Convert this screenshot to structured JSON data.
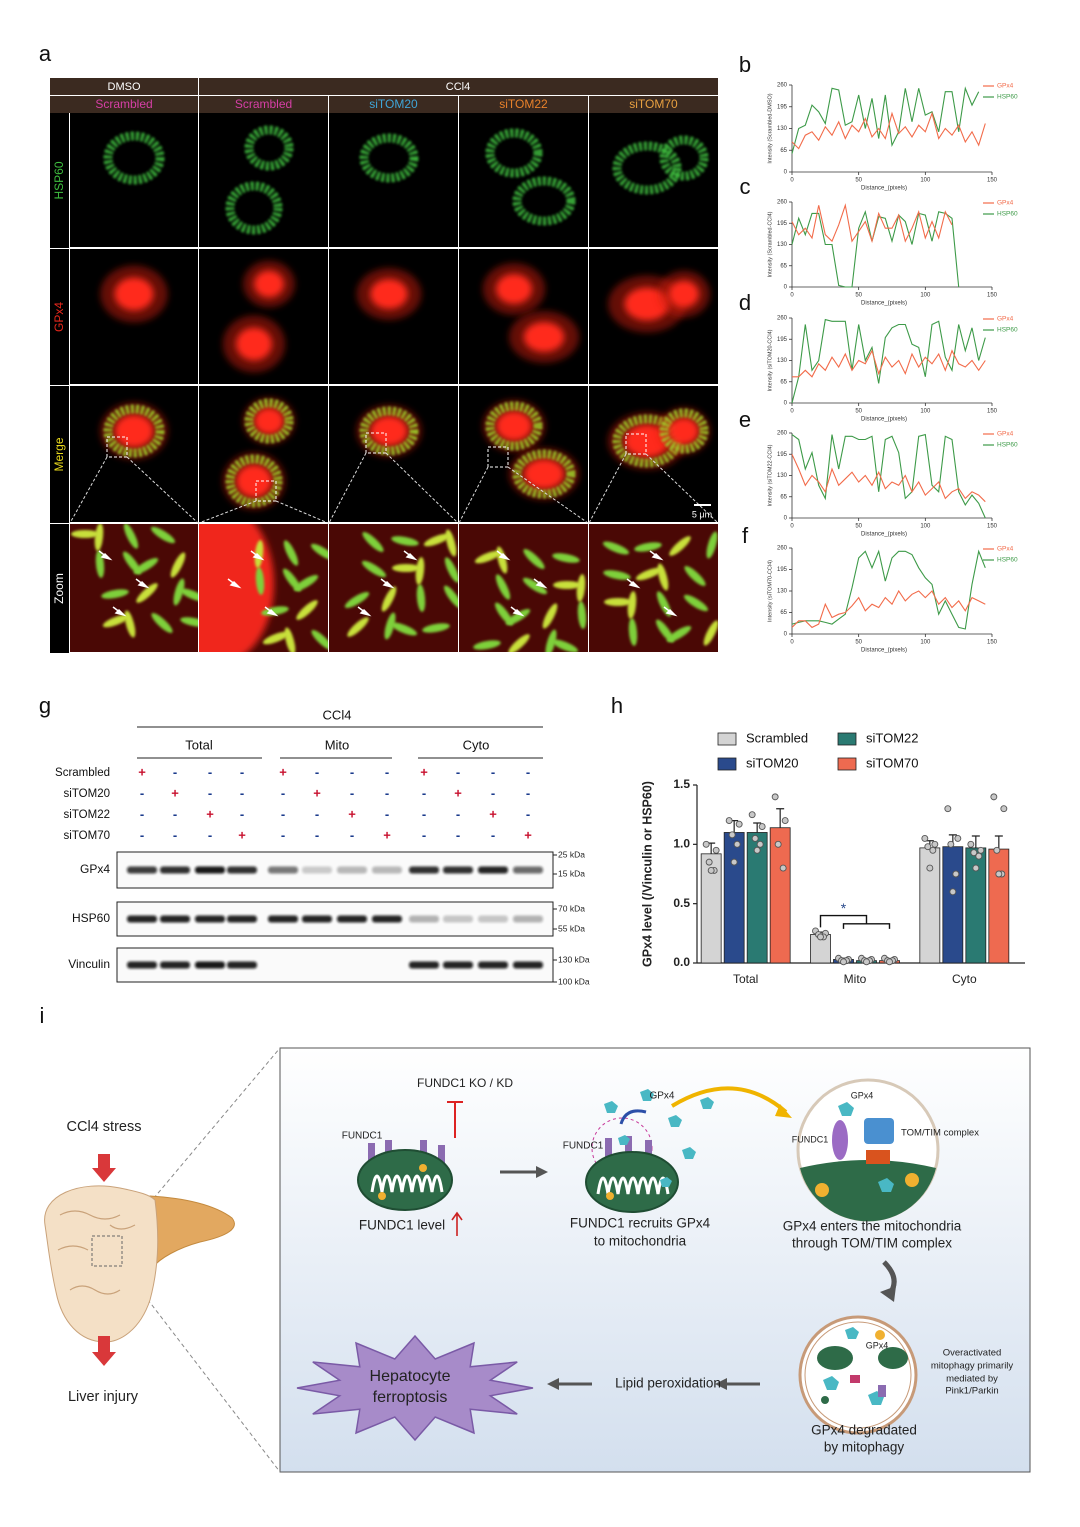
{
  "panel_labels": [
    "a",
    "b",
    "c",
    "d",
    "e",
    "f",
    "g",
    "h",
    "i"
  ],
  "microscopy": {
    "groups": [
      "DMSO",
      "CCl4"
    ],
    "conditions": [
      {
        "label": "Scrambled",
        "color": "#d63fa6"
      },
      {
        "label": "Scrambled",
        "color": "#d63fa6"
      },
      {
        "label": "siTOM20",
        "color": "#3fa5d8"
      },
      {
        "label": "siTOM22",
        "color": "#e8812a"
      },
      {
        "label": "siTOM70",
        "color": "#e8a040"
      }
    ],
    "rows": [
      {
        "label": "HSP60",
        "color": "#3fbf3f"
      },
      {
        "label": "GPx4",
        "color": "#e8281c"
      },
      {
        "label": "Merge",
        "color": "#e8d81c"
      },
      {
        "label": "Zoom",
        "color": "#ffffff"
      }
    ],
    "scale_bar": "5 μm"
  },
  "chart_data": [
    {
      "type": "line",
      "ylabel": "Intensity (Scrambled-DMSO)",
      "xlabel": "Distance_(pixels)",
      "x": [
        0,
        5,
        10,
        15,
        20,
        25,
        30,
        35,
        40,
        45,
        50,
        55,
        60,
        65,
        70,
        75,
        80,
        85,
        90,
        95,
        100,
        105,
        110,
        115,
        120,
        125,
        130,
        135,
        140,
        145
      ],
      "xlim": [
        0,
        150
      ],
      "xticks": [
        0,
        50,
        100,
        150
      ],
      "ylim": [
        0,
        260
      ],
      "yticks": [
        0,
        65,
        130,
        195,
        260
      ],
      "series": [
        {
          "name": "GPx4",
          "color": "#f26b4a",
          "values": [
            90,
            70,
            110,
            120,
            95,
            135,
            110,
            150,
            100,
            140,
            120,
            160,
            105,
            130,
            100,
            175,
            115,
            135,
            105,
            140,
            120,
            175,
            100,
            130,
            110,
            140,
            90,
            120,
            80,
            145
          ]
        },
        {
          "name": "HSP60",
          "color": "#3d9a48",
          "values": [
            55,
            130,
            140,
            200,
            180,
            145,
            250,
            245,
            140,
            150,
            230,
            130,
            220,
            100,
            230,
            80,
            120,
            250,
            150,
            250,
            170,
            180,
            120,
            240,
            240,
            120,
            250,
            200,
            240,
            null
          ]
        }
      ]
    },
    {
      "type": "line",
      "ylabel": "Intensity (Scrambled-CCl4)",
      "xlabel": "Distance_(pixels)",
      "x": [
        0,
        5,
        10,
        15,
        20,
        25,
        30,
        35,
        40,
        45,
        50,
        55,
        60,
        65,
        70,
        75,
        80,
        85,
        90,
        95,
        100,
        105,
        110,
        115,
        120,
        125,
        130,
        135,
        140,
        145
      ],
      "xlim": [
        0,
        150
      ],
      "xticks": [
        0,
        50,
        100,
        150
      ],
      "ylim": [
        0,
        260
      ],
      "yticks": [
        0,
        65,
        130,
        195,
        260
      ],
      "series": [
        {
          "name": "GPx4",
          "color": "#f26b4a",
          "values": [
            200,
            160,
            180,
            150,
            250,
            160,
            140,
            190,
            250,
            140,
            170,
            200,
            140,
            225,
            180,
            180,
            220,
            140,
            180,
            230,
            150,
            200,
            150,
            230,
            190,
            null,
            null,
            null,
            null,
            null
          ]
        },
        {
          "name": "HSP60",
          "color": "#3d9a48",
          "values": [
            130,
            210,
            160,
            225,
            225,
            130,
            130,
            5,
            0,
            0,
            180,
            230,
            140,
            215,
            210,
            140,
            220,
            200,
            130,
            225,
            220,
            140,
            230,
            225,
            210,
            0,
            null,
            null,
            null,
            null
          ]
        }
      ]
    },
    {
      "type": "line",
      "ylabel": "Intensity (siTOM20-CCl4)",
      "xlabel": "Distance_(pixels)",
      "x": [
        0,
        5,
        10,
        15,
        20,
        25,
        30,
        35,
        40,
        45,
        50,
        55,
        60,
        65,
        70,
        75,
        80,
        85,
        90,
        95,
        100,
        105,
        110,
        115,
        120,
        125,
        130,
        135,
        140,
        145
      ],
      "xlim": [
        0,
        150
      ],
      "xticks": [
        0,
        50,
        100,
        150
      ],
      "ylim": [
        0,
        260
      ],
      "yticks": [
        0,
        65,
        130,
        195,
        260
      ],
      "series": [
        {
          "name": "GPx4",
          "color": "#f26b4a",
          "values": [
            80,
            80,
            100,
            80,
            120,
            100,
            140,
            110,
            150,
            100,
            130,
            120,
            160,
            90,
            140,
            110,
            130,
            90,
            150,
            110,
            140,
            120,
            150,
            100,
            160,
            120,
            110,
            130,
            100,
            130
          ]
        },
        {
          "name": "HSP60",
          "color": "#3d9a48",
          "values": [
            0,
            80,
            240,
            100,
            130,
            255,
            250,
            250,
            250,
            100,
            240,
            130,
            170,
            60,
            200,
            230,
            240,
            240,
            180,
            170,
            80,
            240,
            250,
            140,
            100,
            240,
            160,
            230,
            130,
            200
          ]
        }
      ]
    },
    {
      "type": "line",
      "ylabel": "Intensity (siTOM22-CCl4)",
      "xlabel": "Distance_(pixels)",
      "x": [
        0,
        5,
        10,
        15,
        20,
        25,
        30,
        35,
        40,
        45,
        50,
        55,
        60,
        65,
        70,
        75,
        80,
        85,
        90,
        95,
        100,
        105,
        110,
        115,
        120,
        125,
        130,
        135,
        140,
        145
      ],
      "xlim": [
        0,
        150
      ],
      "xticks": [
        0,
        50,
        100,
        150
      ],
      "ylim": [
        0,
        260
      ],
      "yticks": [
        0,
        65,
        130,
        195,
        260
      ],
      "series": [
        {
          "name": "GPx4",
          "color": "#f26b4a",
          "values": [
            195,
            150,
            100,
            130,
            110,
            80,
            150,
            100,
            120,
            140,
            110,
            130,
            100,
            140,
            90,
            110,
            100,
            130,
            80,
            110,
            70,
            90,
            110,
            60,
            80,
            90,
            60,
            80,
            70,
            50
          ]
        },
        {
          "name": "HSP60",
          "color": "#3d9a48",
          "values": [
            255,
            240,
            150,
            200,
            100,
            60,
            255,
            150,
            250,
            250,
            240,
            240,
            250,
            80,
            240,
            250,
            200,
            60,
            80,
            250,
            255,
            100,
            80,
            250,
            240,
            80,
            40,
            70,
            45,
            0
          ]
        }
      ]
    },
    {
      "type": "line",
      "ylabel": "Intensity (siTOM70-CCl4)",
      "xlabel": "Distance_(pixels)",
      "x": [
        0,
        5,
        10,
        15,
        20,
        25,
        30,
        35,
        40,
        45,
        50,
        55,
        60,
        65,
        70,
        75,
        80,
        85,
        90,
        95,
        100,
        105,
        110,
        115,
        120,
        125,
        130,
        135,
        140,
        145
      ],
      "xlim": [
        0,
        150
      ],
      "xticks": [
        0,
        50,
        100,
        150
      ],
      "ylim": [
        0,
        260
      ],
      "yticks": [
        0,
        65,
        130,
        195,
        260
      ],
      "series": [
        {
          "name": "GPx4",
          "color": "#f26b4a",
          "values": [
            20,
            40,
            40,
            20,
            30,
            90,
            50,
            60,
            65,
            85,
            110,
            70,
            90,
            80,
            110,
            90,
            130,
            100,
            120,
            130,
            110,
            130,
            90,
            110,
            80,
            100,
            70,
            110,
            100,
            90
          ]
        },
        {
          "name": "HSP60",
          "color": "#3d9a48",
          "values": [
            30,
            35,
            40,
            40,
            40,
            35,
            30,
            45,
            60,
            140,
            230,
            250,
            200,
            250,
            160,
            230,
            250,
            250,
            240,
            200,
            170,
            150,
            60,
            100,
            60,
            20,
            15,
            150,
            250,
            200
          ]
        }
      ]
    },
    {
      "type": "bar",
      "ylabel": "GPx4 level (/Vinculin or HSP60)",
      "categories": [
        "Total",
        "Mito",
        "Cyto"
      ],
      "ylim": [
        0,
        1.5
      ],
      "yticks": [
        {
          "value": 0,
          "label": "0.0"
        },
        {
          "value": 0.5,
          "label": "0.5"
        },
        {
          "value": 1,
          "label": "1.0"
        },
        {
          "value": 1.5,
          "label": "1.5"
        }
      ],
      "significance": "*",
      "series": [
        {
          "name": "Scrambled",
          "color": "#d4d4d4",
          "values": [
            0.92,
            0.24,
            0.97
          ],
          "errors": [
            0.09,
            0.02,
            0.06
          ],
          "points": [
            [
              1.0,
              0.95,
              0.85,
              0.78,
              0.78
            ],
            [
              0.27,
              0.25,
              0.24,
              0.22,
              0.22
            ],
            [
              1.05,
              1.0,
              0.98,
              0.95,
              0.8
            ]
          ]
        },
        {
          "name": "siTOM20",
          "color": "#2a4a8c",
          "values": [
            1.1,
            0.03,
            0.98
          ],
          "errors": [
            0.1,
            0.01,
            0.1
          ],
          "points": [
            [
              1.2,
              1.17,
              1.08,
              1.0,
              0.85
            ],
            [
              0.04,
              0.03,
              0.02,
              0.02,
              0.01
            ],
            [
              1.3,
              1.05,
              1.0,
              0.75,
              0.6
            ]
          ]
        },
        {
          "name": "siTOM22",
          "color": "#2a7a72",
          "values": [
            1.1,
            0.02,
            0.97
          ],
          "errors": [
            0.08,
            0.01,
            0.1
          ],
          "points": [
            [
              1.25,
              1.15,
              1.05,
              1.0,
              0.95
            ],
            [
              0.04,
              0.03,
              0.02,
              0.02,
              0.01
            ],
            [
              1.0,
              0.95,
              0.93,
              0.9,
              0.8
            ]
          ]
        },
        {
          "name": "siTOM70",
          "color": "#ee6a50",
          "values": [
            1.14,
            0.02,
            0.96
          ],
          "errors": [
            0.16,
            0.01,
            0.11
          ],
          "points": [
            [
              1.4,
              1.2,
              1.0,
              0.8
            ],
            [
              0.04,
              0.03,
              0.02,
              0.02,
              0.01
            ],
            [
              1.4,
              1.3,
              0.95,
              0.75,
              0.75
            ]
          ]
        }
      ]
    }
  ],
  "western_blot": {
    "treatment": "CCl4",
    "fractions": [
      "Total",
      "Mito",
      "Cyto"
    ],
    "conditions": [
      {
        "label": "Scrambled",
        "signs": [
          "+",
          "-",
          "-",
          "-",
          "+",
          "-",
          "-",
          "-",
          "+",
          "-",
          "-",
          "-"
        ]
      },
      {
        "label": "siTOM20",
        "signs": [
          "-",
          "+",
          "-",
          "-",
          "-",
          "+",
          "-",
          "-",
          "-",
          "+",
          "-",
          "-"
        ]
      },
      {
        "label": "siTOM22",
        "signs": [
          "-",
          "-",
          "+",
          "-",
          "-",
          "-",
          "+",
          "-",
          "-",
          "-",
          "+",
          "-"
        ]
      },
      {
        "label": "siTOM70",
        "signs": [
          "-",
          "-",
          "-",
          "+",
          "-",
          "-",
          "-",
          "+",
          "-",
          "-",
          "-",
          "+"
        ]
      }
    ],
    "blots": [
      "GPx4",
      "HSP60",
      "Vinculin"
    ],
    "markers": [
      "25 kDa",
      "15 kDa",
      "70 kDa",
      "55 kDa",
      "130 kDa",
      "100 kDa"
    ]
  },
  "schematic": {
    "stress": "CCl4 stress",
    "injury": "Liver injury",
    "inhibitor": "FUNDC1 KO / KD",
    "step1_protein": "FUNDC1",
    "step1_caption": "FUNDC1 level",
    "step2_gpx4": "GPx4",
    "step2_protein": "FUNDC1",
    "step2_caption": [
      "FUNDC1 recruits GPx4",
      "to mitochondria"
    ],
    "step3_gpx4": "GPx4",
    "step3_protein": "FUNDC1",
    "step3_complex": "TOM/TIM complex",
    "step3_caption": [
      "GPx4 enters the mitochondria",
      "through TOM/TIM complex"
    ],
    "step4_gpx4": "GPx4",
    "step4_note": [
      "Overactivated",
      "mitophagy primarily",
      "mediated by",
      "Pink1/Parkin"
    ],
    "step4_caption": [
      "GPx4 degradated",
      "by mitophagy"
    ],
    "lipid": "Lipid peroxidation",
    "outcome": [
      "Hepatocyte",
      "ferroptosis"
    ]
  }
}
